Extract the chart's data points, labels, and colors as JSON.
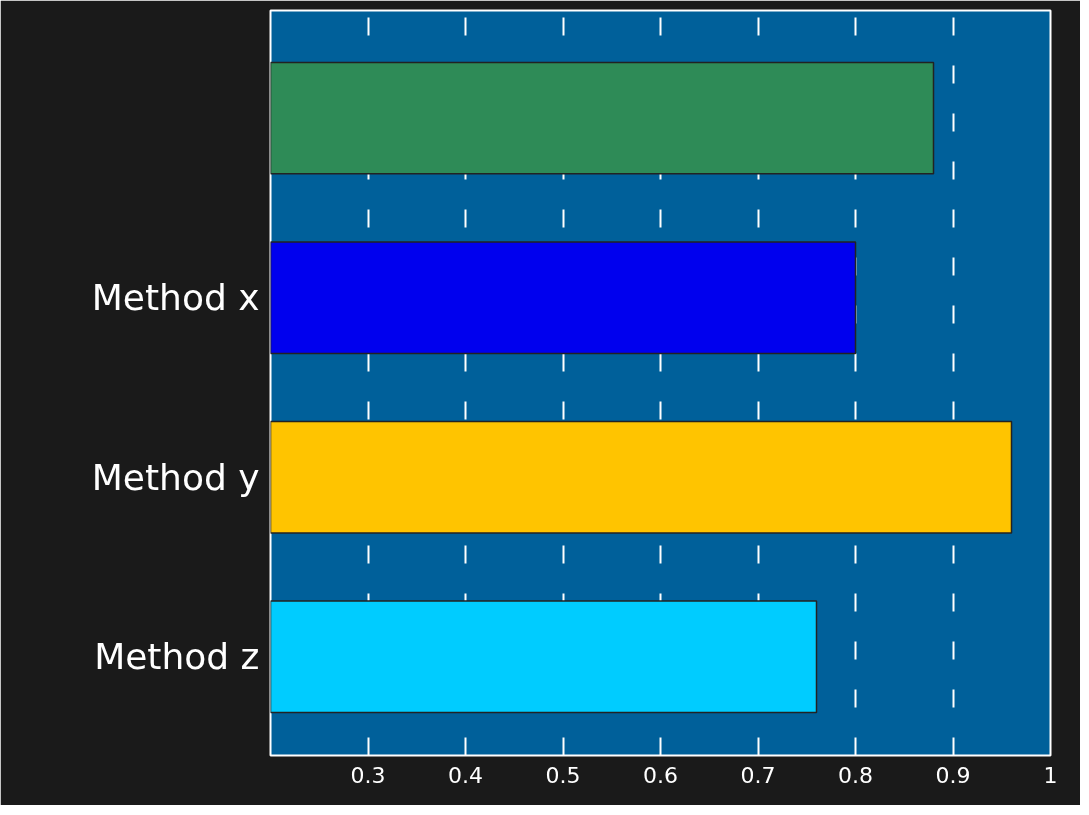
{
  "chart_data": {
    "type": "bar",
    "orientation": "horizontal",
    "categories": [
      null,
      "Method x",
      "Method y",
      "Method z"
    ],
    "values": [
      0.88,
      0.8,
      0.96,
      0.76
    ],
    "colors": [
      "#2e8b57",
      "#0000ee",
      "#ffc400",
      "#00ccff"
    ],
    "xlim": [
      0.2,
      1.0
    ],
    "xticks": [
      0.3,
      0.4,
      0.5,
      0.6,
      0.7,
      0.8,
      0.9,
      1
    ],
    "grid": "x"
  }
}
